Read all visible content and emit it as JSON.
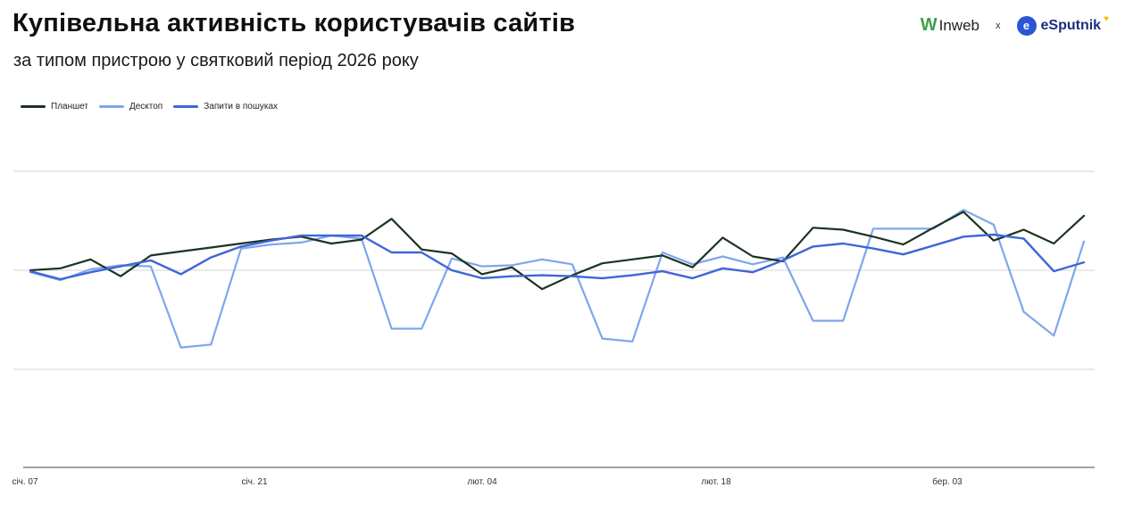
{
  "header": {
    "title": "Купівельна активність користувачів сайтів",
    "subtitle": "за типом пристрою у святковий період 2026 року"
  },
  "brands": {
    "inweb_mark": "W",
    "inweb_name": "Inweb",
    "separator": "x",
    "esputnik_mark": "e",
    "esputnik_name": "eSputnik",
    "esputnik_heart": "♥"
  },
  "colors": {
    "tablet": "#1b3322",
    "desktop": "#7fa6ec",
    "search": "#3f66d6",
    "grid": "#d6d6d6",
    "axis": "#444444"
  },
  "chart_data": {
    "type": "line",
    "title": "Купівельна активність користувачів сайтів",
    "subtitle": "за типом пристрою у святковий період 2026 року",
    "xlabel": "",
    "ylabel": "",
    "x_tick_labels": [
      "січ. 07",
      "січ. 21",
      "лют. 04",
      "лют. 18",
      "бер. 03"
    ],
    "x_tick_index": [
      0,
      8,
      16,
      24,
      32
    ],
    "ylim": [
      -2,
      3
    ],
    "grid": true,
    "legend_position": "top-left",
    "series": [
      {
        "name": "Планшет",
        "color_key": "tablet",
        "values": [
          0,
          0.02,
          0.11,
          -0.06,
          0.15,
          0.19,
          0.23,
          0.27,
          0.31,
          0.34,
          0.27,
          0.31,
          0.52,
          0.21,
          0.17,
          -0.04,
          0.03,
          -0.19,
          -0.05,
          0.07,
          0.11,
          0.15,
          0.03,
          0.33,
          0.14,
          0.09,
          0.43,
          0.41,
          0.34,
          0.26,
          0.43,
          0.59,
          0.3,
          0.41,
          0.27,
          0.55
        ]
      },
      {
        "name": "Десктоп",
        "color_key": "desktop",
        "values": [
          -0.02,
          -0.1,
          0.01,
          0.05,
          0.04,
          -0.78,
          -0.75,
          0.22,
          0.26,
          0.28,
          0.35,
          0.32,
          -0.59,
          -0.59,
          0.12,
          0.04,
          0.05,
          0.11,
          0.06,
          -0.69,
          -0.72,
          0.18,
          0.06,
          0.14,
          0.06,
          0.13,
          -0.51,
          -0.51,
          0.42,
          0.42,
          0.42,
          0.61,
          0.46,
          -0.42,
          -0.66,
          0.29
        ]
      },
      {
        "name": "Запити в пошуках",
        "color_key": "search",
        "values": [
          -0.01,
          -0.09,
          -0.02,
          0.04,
          0.1,
          -0.04,
          0.13,
          0.24,
          0.3,
          0.35,
          0.35,
          0.35,
          0.18,
          0.18,
          0.0,
          -0.08,
          -0.06,
          -0.05,
          -0.06,
          -0.08,
          -0.05,
          -0.01,
          -0.08,
          0.02,
          -0.02,
          0.1,
          0.24,
          0.27,
          0.22,
          0.16,
          0.25,
          0.34,
          0.36,
          0.32,
          -0.01,
          0.08
        ]
      }
    ]
  }
}
